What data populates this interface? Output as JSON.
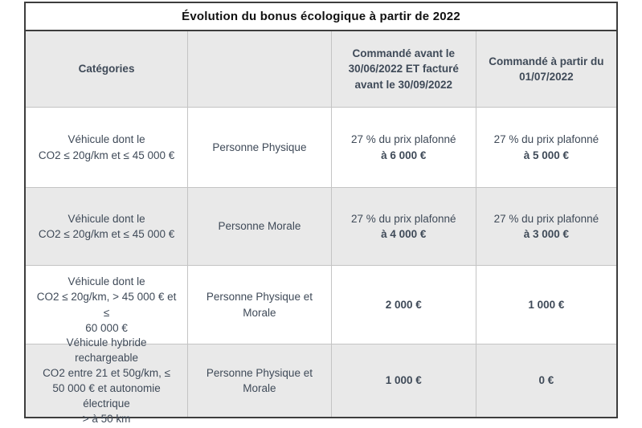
{
  "title": "Évolution du bonus écologique à partir de 2022",
  "table": {
    "columns": [
      {
        "label": "Catégories"
      },
      {
        "label": ""
      },
      {
        "label": "Commandé avant le\n30/06/2022 ET facturé\navant le 30/09/2022"
      },
      {
        "label": "Commandé à partir du\n01/07/2022"
      }
    ],
    "rows": [
      {
        "category": "Véhicule dont le\nCO2 ≤ 20g/km et ≤ 45 000 €",
        "person": "Personne Physique",
        "before": {
          "text": "27 % du prix plafonné",
          "amount": "à 6 000 €"
        },
        "after": {
          "text": "27 % du prix plafonné",
          "amount": "à 5 000 €"
        }
      },
      {
        "category": "Véhicule dont le\nCO2 ≤ 20g/km et ≤ 45 000 €",
        "person": "Personne Morale",
        "before": {
          "text": "27 % du prix plafonné",
          "amount": "à 4 000 €"
        },
        "after": {
          "text": "27 % du prix plafonné",
          "amount": "à 3 000 €"
        }
      },
      {
        "category": "Véhicule dont le\nCO2 ≤ 20g/km, > 45 000 € et ≤\n60 000 €",
        "person": "Personne Physique et Morale",
        "before": {
          "text": "",
          "amount": "2 000 €"
        },
        "after": {
          "text": "",
          "amount": "1 000 €"
        }
      },
      {
        "category": "Véhicule hybride rechargeable\nCO2 entre 21 et 50g/km, ≤\n50 000 € et autonomie électrique\n> à 50 km",
        "person": "Personne Physique et Morale",
        "before": {
          "text": "",
          "amount": "1 000 €"
        },
        "after": {
          "text": "",
          "amount": "0 €"
        }
      }
    ]
  },
  "colors": {
    "border_dark": "#3d3d3d",
    "border_light": "#c4c4c4",
    "row_gray": "#e9e9e9",
    "text": "#3f4a58",
    "title_text": "#111111"
  }
}
